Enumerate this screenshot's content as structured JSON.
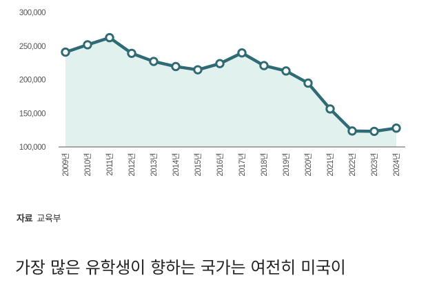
{
  "source": {
    "label": "자료",
    "value": "교육부"
  },
  "headline": "가장 많은 유학생이 향하는 국가는 여전히 미국이",
  "colors": {
    "line": "#2f6b74",
    "area": "#e1f1ee",
    "axis": "#555555"
  },
  "chart_data": {
    "type": "area",
    "title": "",
    "xlabel": "",
    "ylabel": "",
    "ylim": [
      100000,
      300000
    ],
    "yticks": [
      100000,
      150000,
      200000,
      250000,
      300000
    ],
    "ytick_labels": [
      "100,000",
      "150,000",
      "200,000",
      "250,000",
      "300,000"
    ],
    "categories": [
      "2009년",
      "2010년",
      "2011년",
      "2012년",
      "2013년",
      "2014년",
      "2015년",
      "2016년",
      "2017년",
      "2018년",
      "2019년",
      "2020년",
      "2021년",
      "2022년",
      "2023년",
      "2024년"
    ],
    "series": [
      {
        "values": [
          240949,
          251887,
          262465,
          239213,
          227126,
          219543,
          214696,
          223908,
          239824,
          220930,
          213000,
          194916,
          156493,
          123750,
          123181,
          127994
        ]
      }
    ],
    "grid": false,
    "legend": "none"
  }
}
